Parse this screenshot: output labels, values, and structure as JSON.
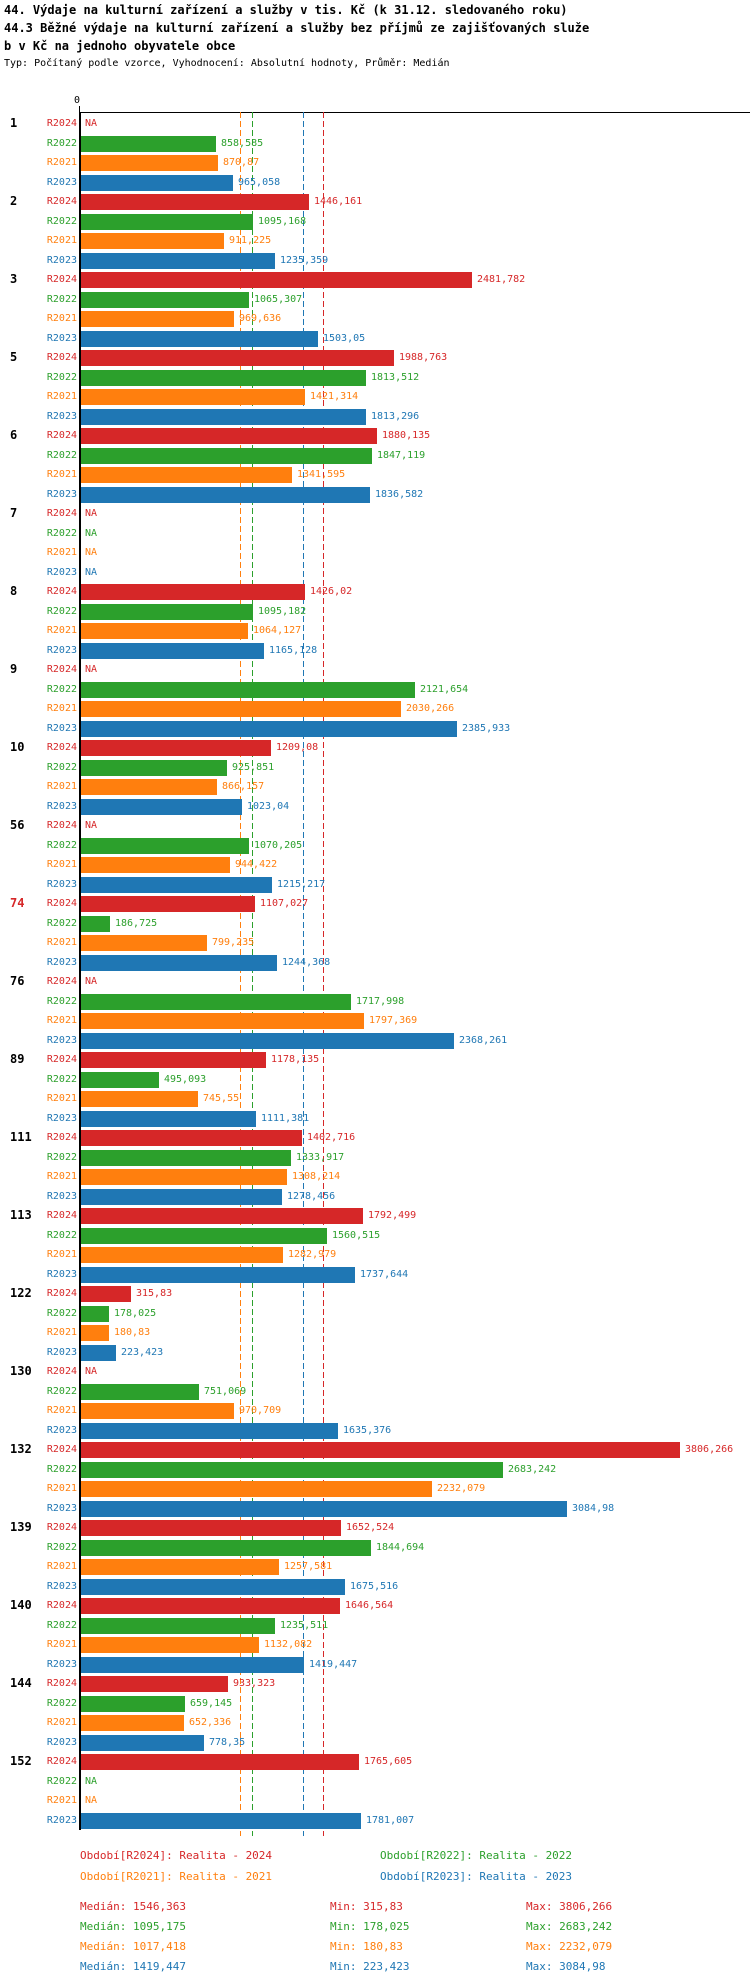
{
  "header": {
    "title_line1": "44. Výdaje na kulturní zařízení a služby v tis. Kč (k 31.12. sledovaného roku)",
    "title_line2": "44.3 Běžné výdaje na kulturní zařízení a služby bez příjmů ze zajišťovaných služe",
    "title_line3": "b v Kč na jednoho obyvatele obce",
    "subtitle": "Typ: Počítaný podle vzorce, Vyhodnocení: Absolutní hodnoty, Průměr: Medián"
  },
  "chart_data": {
    "type": "bar",
    "orientation": "horizontal",
    "x_axis": {
      "zero_label": "0",
      "min": 0,
      "max_value_shown": 3806.266
    },
    "na_label": "NA",
    "average_type": "Medián",
    "series": [
      {
        "key": "R2024",
        "label": "R2024",
        "color": "#d62728",
        "median": 1546.363
      },
      {
        "key": "R2022",
        "label": "R2022",
        "color": "#2ca02c",
        "median": 1095.175
      },
      {
        "key": "R2021",
        "label": "R2021",
        "color": "#ff7f0e",
        "median": 1017.418
      },
      {
        "key": "R2023",
        "label": "R2023",
        "color": "#1f77b4",
        "median": 1419.447
      }
    ],
    "groups": [
      {
        "id": "1",
        "values": {
          "R2024": null,
          "R2022": "858,585",
          "R2021": "870,87",
          "R2023": "965,058"
        }
      },
      {
        "id": "2",
        "values": {
          "R2024": "1446,161",
          "R2022": "1095,168",
          "R2021": "911,225",
          "R2023": "1235,359"
        }
      },
      {
        "id": "3",
        "values": {
          "R2024": "2481,782",
          "R2022": "1065,307",
          "R2021": "969,636",
          "R2023": "1503,05"
        }
      },
      {
        "id": "5",
        "values": {
          "R2024": "1988,763",
          "R2022": "1813,512",
          "R2021": "1421,314",
          "R2023": "1813,296"
        }
      },
      {
        "id": "6",
        "values": {
          "R2024": "1880,135",
          "R2022": "1847,119",
          "R2021": "1341,595",
          "R2023": "1836,582"
        }
      },
      {
        "id": "7",
        "values": {
          "R2024": null,
          "R2022": null,
          "R2021": null,
          "R2023": null
        }
      },
      {
        "id": "8",
        "values": {
          "R2024": "1426,02",
          "R2022": "1095,182",
          "R2021": "1064,127",
          "R2023": "1165,128"
        }
      },
      {
        "id": "9",
        "values": {
          "R2024": null,
          "R2022": "2121,654",
          "R2021": "2030,266",
          "R2023": "2385,933"
        }
      },
      {
        "id": "10",
        "values": {
          "R2024": "1209,08",
          "R2022": "925,851",
          "R2021": "866,157",
          "R2023": "1023,04"
        }
      },
      {
        "id": "56",
        "values": {
          "R2024": null,
          "R2022": "1070,205",
          "R2021": "944,422",
          "R2023": "1215,217"
        }
      },
      {
        "id": "74",
        "id_color": "#d62728",
        "values": {
          "R2024": "1107,027",
          "R2022": "186,725",
          "R2021": "799,235",
          "R2023": "1244,368"
        }
      },
      {
        "id": "76",
        "values": {
          "R2024": null,
          "R2022": "1717,998",
          "R2021": "1797,369",
          "R2023": "2368,261"
        }
      },
      {
        "id": "89",
        "values": {
          "R2024": "1178,135",
          "R2022": "495,093",
          "R2021": "745,55",
          "R2023": "1111,381"
        }
      },
      {
        "id": "111",
        "values": {
          "R2024": "1402,716",
          "R2022": "1333,917",
          "R2021": "1308,214",
          "R2023": "1278,456"
        }
      },
      {
        "id": "113",
        "values": {
          "R2024": "1792,499",
          "R2022": "1560,515",
          "R2021": "1282,979",
          "R2023": "1737,644"
        }
      },
      {
        "id": "122",
        "values": {
          "R2024": "315,83",
          "R2022": "178,025",
          "R2021": "180,83",
          "R2023": "223,423"
        }
      },
      {
        "id": "130",
        "values": {
          "R2024": null,
          "R2022": "751,069",
          "R2021": "970,709",
          "R2023": "1635,376"
        }
      },
      {
        "id": "132",
        "values": {
          "R2024": "3806,266",
          "R2022": "2683,242",
          "R2021": "2232,079",
          "R2023": "3084,98"
        }
      },
      {
        "id": "139",
        "values": {
          "R2024": "1652,524",
          "R2022": "1844,694",
          "R2021": "1257,581",
          "R2023": "1675,516"
        }
      },
      {
        "id": "140",
        "values": {
          "R2024": "1646,564",
          "R2022": "1235,511",
          "R2021": "1132,082",
          "R2023": "1419,447"
        }
      },
      {
        "id": "144",
        "values": {
          "R2024": "933,323",
          "R2022": "659,145",
          "R2021": "652,336",
          "R2023": "778,35"
        }
      },
      {
        "id": "152",
        "values": {
          "R2024": "1765,605",
          "R2022": null,
          "R2021": null,
          "R2023": "1781,007"
        }
      }
    ]
  },
  "legend": [
    {
      "label": "Období[R2024]: Realita - 2024",
      "color": "#d62728"
    },
    {
      "label": "Období[R2022]: Realita - 2022",
      "color": "#2ca02c"
    },
    {
      "label": "Období[R2021]: Realita - 2021",
      "color": "#ff7f0e"
    },
    {
      "label": "Období[R2023]: Realita - 2023",
      "color": "#1f77b4"
    }
  ],
  "stats": [
    {
      "color": "#d62728",
      "median": "Medián: 1546,363",
      "min": "Min: 315,83",
      "max": "Max: 3806,266"
    },
    {
      "color": "#2ca02c",
      "median": "Medián: 1095,175",
      "min": "Min: 178,025",
      "max": "Max: 2683,242"
    },
    {
      "color": "#ff7f0e",
      "median": "Medián: 1017,418",
      "min": "Min: 180,83",
      "max": "Max: 2232,079"
    },
    {
      "color": "#1f77b4",
      "median": "Medián: 1419,447",
      "min": "Min: 223,423",
      "max": "Max: 3084,98"
    }
  ]
}
